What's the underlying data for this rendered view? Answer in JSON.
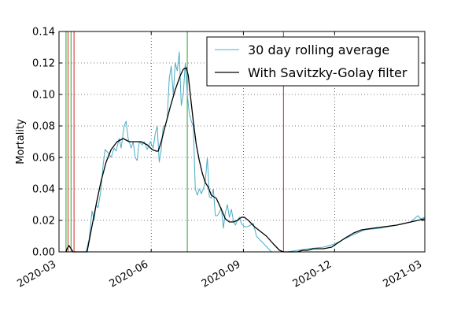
{
  "chart_data": {
    "type": "line",
    "title": "",
    "xlabel": "",
    "ylabel": "Mortality",
    "ylim": [
      0,
      0.14
    ],
    "xlim": [
      "2020-03-01",
      "2021-03-01"
    ],
    "y_ticks": [
      "0.00",
      "0.02",
      "0.04",
      "0.06",
      "0.08",
      "0.10",
      "0.12",
      "0.14"
    ],
    "y_tick_values": [
      0,
      0.02,
      0.04,
      0.06,
      0.08,
      0.1,
      0.12,
      0.14
    ],
    "x_ticks": [
      "2020-03",
      "2020-06",
      "2020-09",
      "2020-12",
      "2021-03"
    ],
    "x_tick_values": [
      "2020-03-01",
      "2020-06-01",
      "2020-09-01",
      "2020-12-01",
      "2021-03-01"
    ],
    "grid": true,
    "legend_position": "top-right",
    "vertical_lines": [
      {
        "date": "2020-03-08",
        "color": "#2ca02c"
      },
      {
        "date": "2020-03-10",
        "color": "#d62728"
      },
      {
        "date": "2020-03-13",
        "color": "#2ca02c"
      },
      {
        "date": "2020-03-16",
        "color": "#d62728"
      },
      {
        "date": "2020-07-07",
        "color": "#2ca02c"
      },
      {
        "date": "2020-10-11",
        "color": "#d62728"
      }
    ],
    "series": [
      {
        "name": "30 day rolling average",
        "color": "#4bacc6",
        "points": [
          [
            "2020-03-08",
            0.0
          ],
          [
            "2020-03-28",
            0.0
          ],
          [
            "2020-03-31",
            0.008
          ],
          [
            "2020-04-03",
            0.026
          ],
          [
            "2020-04-05",
            0.02
          ],
          [
            "2020-04-07",
            0.03
          ],
          [
            "2020-04-09",
            0.028
          ],
          [
            "2020-04-12",
            0.04
          ],
          [
            "2020-04-14",
            0.055
          ],
          [
            "2020-04-16",
            0.065
          ],
          [
            "2020-04-19",
            0.063
          ],
          [
            "2020-04-22",
            0.06
          ],
          [
            "2020-04-25",
            0.066
          ],
          [
            "2020-04-27",
            0.064
          ],
          [
            "2020-04-30",
            0.072
          ],
          [
            "2020-05-02",
            0.066
          ],
          [
            "2020-05-05",
            0.08
          ],
          [
            "2020-05-07",
            0.083
          ],
          [
            "2020-05-09",
            0.072
          ],
          [
            "2020-05-12",
            0.066
          ],
          [
            "2020-05-14",
            0.07
          ],
          [
            "2020-05-16",
            0.06
          ],
          [
            "2020-05-18",
            0.058
          ],
          [
            "2020-05-20",
            0.07
          ],
          [
            "2020-05-23",
            0.068
          ],
          [
            "2020-05-25",
            0.07
          ],
          [
            "2020-05-28",
            0.065
          ],
          [
            "2020-05-31",
            0.07
          ],
          [
            "2020-06-03",
            0.066
          ],
          [
            "2020-06-05",
            0.075
          ],
          [
            "2020-06-07",
            0.08
          ],
          [
            "2020-06-09",
            0.057
          ],
          [
            "2020-06-11",
            0.065
          ],
          [
            "2020-06-13",
            0.08
          ],
          [
            "2020-06-15",
            0.08
          ],
          [
            "2020-06-17",
            0.085
          ],
          [
            "2020-06-19",
            0.11
          ],
          [
            "2020-06-21",
            0.118
          ],
          [
            "2020-06-23",
            0.1
          ],
          [
            "2020-06-25",
            0.12
          ],
          [
            "2020-06-27",
            0.115
          ],
          [
            "2020-06-29",
            0.127
          ],
          [
            "2020-07-01",
            0.093
          ],
          [
            "2020-07-03",
            0.1
          ],
          [
            "2020-07-05",
            0.12
          ],
          [
            "2020-07-07",
            0.1
          ],
          [
            "2020-07-09",
            0.088
          ],
          [
            "2020-07-11",
            0.083
          ],
          [
            "2020-07-13",
            0.08
          ],
          [
            "2020-07-15",
            0.04
          ],
          [
            "2020-07-17",
            0.036
          ],
          [
            "2020-07-19",
            0.04
          ],
          [
            "2020-07-21",
            0.037
          ],
          [
            "2020-07-23",
            0.04
          ],
          [
            "2020-07-25",
            0.045
          ],
          [
            "2020-07-27",
            0.06
          ],
          [
            "2020-07-29",
            0.035
          ],
          [
            "2020-07-31",
            0.034
          ],
          [
            "2020-08-02",
            0.04
          ],
          [
            "2020-08-04",
            0.023
          ],
          [
            "2020-08-06",
            0.023
          ],
          [
            "2020-08-08",
            0.025
          ],
          [
            "2020-08-10",
            0.028
          ],
          [
            "2020-08-12",
            0.015
          ],
          [
            "2020-08-14",
            0.025
          ],
          [
            "2020-08-16",
            0.03
          ],
          [
            "2020-08-18",
            0.022
          ],
          [
            "2020-08-20",
            0.027
          ],
          [
            "2020-08-22",
            0.02
          ],
          [
            "2020-08-24",
            0.017
          ],
          [
            "2020-08-26",
            0.02
          ],
          [
            "2020-08-28",
            0.022
          ],
          [
            "2020-08-30",
            0.018
          ],
          [
            "2020-09-02",
            0.016
          ],
          [
            "2020-09-05",
            0.016
          ],
          [
            "2020-09-08",
            0.017
          ],
          [
            "2020-09-11",
            0.018
          ],
          [
            "2020-09-14",
            0.01
          ],
          [
            "2020-09-17",
            0.008
          ],
          [
            "2020-09-20",
            0.006
          ],
          [
            "2020-09-23",
            0.004
          ],
          [
            "2020-09-26",
            0.002
          ],
          [
            "2020-09-29",
            0.0
          ],
          [
            "2020-10-15",
            0.0
          ],
          [
            "2020-10-25",
            0.001
          ],
          [
            "2020-11-05",
            0.002
          ],
          [
            "2020-11-20",
            0.003
          ],
          [
            "2020-12-01",
            0.005
          ],
          [
            "2020-12-10",
            0.008
          ],
          [
            "2020-12-20",
            0.011
          ],
          [
            "2020-12-31",
            0.014
          ],
          [
            "2021-01-15",
            0.015
          ],
          [
            "2021-02-01",
            0.017
          ],
          [
            "2021-02-15",
            0.019
          ],
          [
            "2021-02-22",
            0.023
          ],
          [
            "2021-02-25",
            0.021
          ],
          [
            "2021-03-01",
            0.022
          ]
        ]
      },
      {
        "name": "With Savitzky-Golay filter",
        "color": "#000000",
        "points": [
          [
            "2020-03-08",
            0.0
          ],
          [
            "2020-03-09",
            0.002
          ],
          [
            "2020-03-11",
            0.004
          ],
          [
            "2020-03-13",
            0.002
          ],
          [
            "2020-03-15",
            0.0
          ],
          [
            "2020-03-29",
            0.0
          ],
          [
            "2020-04-01",
            0.01
          ],
          [
            "2020-04-04",
            0.02
          ],
          [
            "2020-04-08",
            0.033
          ],
          [
            "2020-04-12",
            0.045
          ],
          [
            "2020-04-17",
            0.057
          ],
          [
            "2020-04-22",
            0.065
          ],
          [
            "2020-04-28",
            0.07
          ],
          [
            "2020-05-04",
            0.072
          ],
          [
            "2020-05-10",
            0.07
          ],
          [
            "2020-05-16",
            0.07
          ],
          [
            "2020-05-22",
            0.07
          ],
          [
            "2020-05-28",
            0.068
          ],
          [
            "2020-06-02",
            0.065
          ],
          [
            "2020-06-06",
            0.064
          ],
          [
            "2020-06-08",
            0.064
          ],
          [
            "2020-06-11",
            0.07
          ],
          [
            "2020-06-15",
            0.08
          ],
          [
            "2020-06-20",
            0.092
          ],
          [
            "2020-06-25",
            0.103
          ],
          [
            "2020-06-30",
            0.112
          ],
          [
            "2020-07-03",
            0.116
          ],
          [
            "2020-07-06",
            0.117
          ],
          [
            "2020-07-08",
            0.112
          ],
          [
            "2020-07-10",
            0.1
          ],
          [
            "2020-07-13",
            0.083
          ],
          [
            "2020-07-16",
            0.068
          ],
          [
            "2020-07-19",
            0.058
          ],
          [
            "2020-07-22",
            0.05
          ],
          [
            "2020-07-25",
            0.044
          ],
          [
            "2020-07-28",
            0.041
          ],
          [
            "2020-07-31",
            0.036
          ],
          [
            "2020-08-05",
            0.034
          ],
          [
            "2020-08-10",
            0.027
          ],
          [
            "2020-08-14",
            0.021
          ],
          [
            "2020-08-18",
            0.019
          ],
          [
            "2020-08-22",
            0.019
          ],
          [
            "2020-08-26",
            0.02
          ],
          [
            "2020-08-30",
            0.022
          ],
          [
            "2020-09-02",
            0.022
          ],
          [
            "2020-09-06",
            0.02
          ],
          [
            "2020-09-12",
            0.016
          ],
          [
            "2020-09-18",
            0.013
          ],
          [
            "2020-09-24",
            0.01
          ],
          [
            "2020-10-01",
            0.005
          ],
          [
            "2020-10-07",
            0.001
          ],
          [
            "2020-10-11",
            0.0
          ],
          [
            "2020-10-25",
            0.0
          ],
          [
            "2020-10-30",
            0.001
          ],
          [
            "2020-11-04",
            0.001
          ],
          [
            "2020-11-10",
            0.002
          ],
          [
            "2020-11-20",
            0.002
          ],
          [
            "2020-11-28",
            0.003
          ],
          [
            "2020-12-05",
            0.006
          ],
          [
            "2020-12-12",
            0.009
          ],
          [
            "2020-12-20",
            0.012
          ],
          [
            "2020-12-28",
            0.014
          ],
          [
            "2021-01-08",
            0.015
          ],
          [
            "2021-01-20",
            0.016
          ],
          [
            "2021-02-01",
            0.017
          ],
          [
            "2021-02-15",
            0.019
          ],
          [
            "2021-03-01",
            0.021
          ]
        ]
      }
    ]
  }
}
